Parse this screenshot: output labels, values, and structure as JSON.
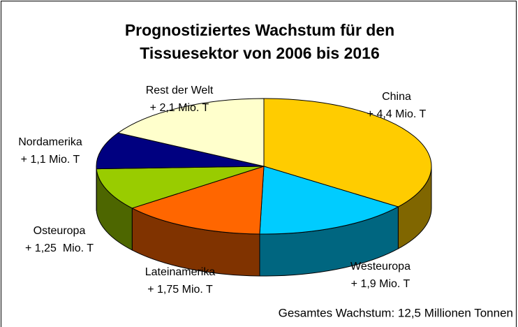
{
  "chart_data": {
    "type": "pie3d",
    "title": [
      "Prognostiziertes Wachstum für den",
      "Tissuesektor von 2006 bis 2016"
    ],
    "categories": [
      "China",
      "Westeuropa",
      "Lateinamerika",
      "Osteuropa",
      "Nordamerika",
      "Rest der Welt"
    ],
    "values": [
      4.4,
      1.9,
      1.75,
      1.25,
      1.1,
      2.1
    ],
    "value_labels": [
      "+ 4,4 Mio. T",
      "+ 1,9 Mio. T",
      "+ 1,75 Mio. T",
      "+ 1,25  Mio. T",
      "+ 1,1 Mio. T",
      "+ 2,1 Mio. T"
    ],
    "colors": [
      "#ffcc00",
      "#00ccff",
      "#ff6600",
      "#99cc00",
      "#000080",
      "#ffffcc"
    ],
    "annotation": "Gesamtes Wachstum: 12,5 Millionen Tonnen"
  }
}
